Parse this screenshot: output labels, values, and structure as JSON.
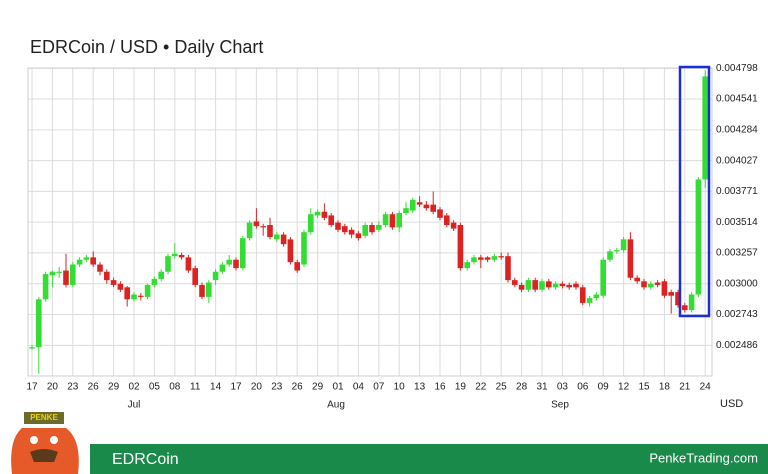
{
  "chart_data": {
    "type": "candlestick",
    "title": "EDRCoin / USD • Daily Chart",
    "currency": "USD",
    "months": [
      "Jul",
      "Aug",
      "Sep"
    ],
    "up_color": "#33dd33",
    "down_color": "#dd2222",
    "grid": true,
    "ylim": [
      0.00223,
      0.0048
    ],
    "yticks": [
      0.002486,
      {
        "value": 0.002743,
        "label": "0.002743"
      },
      {
        "value": 0.003,
        "label": "0.003000"
      },
      0.003257,
      0.003514,
      0.003771,
      0.004027,
      0.004284,
      0.004541,
      0.004798
    ],
    "categories": [
      "17",
      null,
      null,
      "20",
      null,
      null,
      "23",
      null,
      null,
      "26",
      null,
      null,
      "29",
      null,
      null,
      "02",
      null,
      null,
      "05",
      null,
      null,
      "08",
      null,
      null,
      "11",
      null,
      null,
      "14",
      null,
      null,
      "17",
      null,
      null,
      "20",
      null,
      null,
      "23",
      null,
      null,
      "26",
      null,
      null,
      "29",
      null,
      null,
      "01",
      null,
      null,
      "04",
      null,
      null,
      "07",
      null,
      null,
      "10",
      null,
      null,
      "13",
      null,
      null,
      "16",
      null,
      null,
      "19",
      null,
      null,
      "22",
      null,
      null,
      "25",
      null,
      null,
      "28",
      null,
      null,
      "31",
      null,
      null,
      "03",
      null,
      null,
      "06",
      null,
      null,
      "09",
      null,
      null,
      "12",
      null,
      null,
      "15",
      null,
      null,
      "18",
      null,
      null,
      "21",
      null,
      null,
      "24"
    ],
    "ohlc": [
      [
        0.00246,
        0.00249,
        0.00245,
        0.00247
      ],
      [
        0.00247,
        0.00289,
        0.00225,
        0.00287
      ],
      [
        0.00287,
        0.0031,
        0.00285,
        0.00308
      ],
      [
        0.00307,
        0.00311,
        0.00297,
        0.0031
      ],
      [
        0.00309,
        0.00314,
        0.00305,
        0.0031
      ],
      [
        0.00311,
        0.00325,
        0.00297,
        0.00299
      ],
      [
        0.00299,
        0.00318,
        0.00297,
        0.00316
      ],
      [
        0.00316,
        0.00322,
        0.00314,
        0.0032
      ],
      [
        0.0032,
        0.00324,
        0.00318,
        0.00322
      ],
      [
        0.00322,
        0.00327,
        0.00314,
        0.00316
      ],
      [
        0.00316,
        0.00318,
        0.00307,
        0.0031
      ],
      [
        0.0031,
        0.00312,
        0.003,
        0.00303
      ],
      [
        0.00303,
        0.00305,
        0.00297,
        0.00299
      ],
      [
        0.003,
        0.00302,
        0.00293,
        0.00295
      ],
      [
        0.00297,
        0.00298,
        0.00281,
        0.00287
      ],
      [
        0.00287,
        0.00293,
        0.00285,
        0.00291
      ],
      [
        0.0029,
        0.00292,
        0.00286,
        0.00289
      ],
      [
        0.00289,
        0.003,
        0.00287,
        0.00299
      ],
      [
        0.00299,
        0.00306,
        0.00297,
        0.00304
      ],
      [
        0.00304,
        0.00312,
        0.00302,
        0.0031
      ],
      [
        0.0031,
        0.00325,
        0.00308,
        0.00323
      ],
      [
        0.00323,
        0.00334,
        0.00321,
        0.00325
      ],
      [
        0.00324,
        0.00326,
        0.0032,
        0.00322
      ],
      [
        0.00322,
        0.00324,
        0.00309,
        0.00311
      ],
      [
        0.00313,
        0.00315,
        0.00297,
        0.00299
      ],
      [
        0.00299,
        0.00301,
        0.00287,
        0.00289
      ],
      [
        0.00289,
        0.00303,
        0.00284,
        0.00301
      ],
      [
        0.00303,
        0.00312,
        0.00299,
        0.0031
      ],
      [
        0.0031,
        0.00318,
        0.00308,
        0.00316
      ],
      [
        0.00316,
        0.00324,
        0.00314,
        0.0032
      ],
      [
        0.0032,
        0.00322,
        0.00311,
        0.00313
      ],
      [
        0.00313,
        0.0034,
        0.00311,
        0.00338
      ],
      [
        0.00338,
        0.00353,
        0.00336,
        0.00351
      ],
      [
        0.00352,
        0.00363,
        0.00346,
        0.00348
      ],
      [
        0.00348,
        0.0035,
        0.0034,
        0.00347
      ],
      [
        0.00349,
        0.00355,
        0.00337,
        0.00339
      ],
      [
        0.00337,
        0.00343,
        0.00335,
        0.00341
      ],
      [
        0.00341,
        0.00343,
        0.00331,
        0.00333
      ],
      [
        0.00337,
        0.00339,
        0.00316,
        0.00318
      ],
      [
        0.00318,
        0.0032,
        0.00309,
        0.00311
      ],
      [
        0.00316,
        0.00345,
        0.00314,
        0.00343
      ],
      [
        0.00343,
        0.00363,
        0.00341,
        0.00358
      ],
      [
        0.00357,
        0.00362,
        0.00355,
        0.0036
      ],
      [
        0.0036,
        0.00367,
        0.00353,
        0.00355
      ],
      [
        0.00357,
        0.00359,
        0.00347,
        0.00349
      ],
      [
        0.00351,
        0.00353,
        0.00343,
        0.00345
      ],
      [
        0.00348,
        0.0035,
        0.00341,
        0.00343
      ],
      [
        0.00345,
        0.00347,
        0.00338,
        0.00341
      ],
      [
        0.00342,
        0.00344,
        0.00336,
        0.00338
      ],
      [
        0.0034,
        0.00351,
        0.00338,
        0.00349
      ],
      [
        0.00349,
        0.00351,
        0.00341,
        0.00343
      ],
      [
        0.00345,
        0.00352,
        0.00343,
        0.00349
      ],
      [
        0.00349,
        0.0036,
        0.00347,
        0.00358
      ],
      [
        0.00358,
        0.0036,
        0.00345,
        0.00347
      ],
      [
        0.00347,
        0.00361,
        0.00343,
        0.00359
      ],
      [
        0.00359,
        0.00368,
        0.00357,
        0.00363
      ],
      [
        0.00361,
        0.00372,
        0.00359,
        0.0037
      ],
      [
        0.00368,
        0.00373,
        0.00364,
        0.00366
      ],
      [
        0.00366,
        0.00369,
        0.00361,
        0.00363
      ],
      [
        0.00366,
        0.00377,
        0.00358,
        0.0036
      ],
      [
        0.00362,
        0.00364,
        0.00353,
        0.00355
      ],
      [
        0.00357,
        0.00359,
        0.00347,
        0.00349
      ],
      [
        0.00351,
        0.00353,
        0.00344,
        0.00346
      ],
      [
        0.00349,
        0.00351,
        0.00311,
        0.00313
      ],
      [
        0.00313,
        0.0032,
        0.00311,
        0.00318
      ],
      [
        0.00318,
        0.00324,
        0.00316,
        0.00322
      ],
      [
        0.00322,
        0.00324,
        0.00313,
        0.0032
      ],
      [
        0.00322,
        0.00323,
        0.00318,
        0.0032
      ],
      [
        0.0032,
        0.00325,
        0.00318,
        0.00323
      ],
      [
        0.00323,
        0.00326,
        0.0032,
        0.00322
      ],
      [
        0.00323,
        0.00326,
        0.00301,
        0.00303
      ],
      [
        0.00303,
        0.00305,
        0.00297,
        0.00299
      ],
      [
        0.00299,
        0.00301,
        0.00293,
        0.00295
      ],
      [
        0.00295,
        0.00305,
        0.00293,
        0.00303
      ],
      [
        0.00303,
        0.00305,
        0.00293,
        0.00295
      ],
      [
        0.00295,
        0.00304,
        0.00293,
        0.00302
      ],
      [
        0.00302,
        0.00304,
        0.00295,
        0.00297
      ],
      [
        0.00297,
        0.00302,
        0.00295,
        0.003
      ],
      [
        0.003,
        0.00302,
        0.00296,
        0.00298
      ],
      [
        0.00299,
        0.00301,
        0.00295,
        0.00297
      ],
      [
        0.003,
        0.00302,
        0.00295,
        0.00297
      ],
      [
        0.00297,
        0.00299,
        0.00282,
        0.00284
      ],
      [
        0.00284,
        0.0029,
        0.00281,
        0.00288
      ],
      [
        0.00288,
        0.00293,
        0.00286,
        0.00291
      ],
      [
        0.0029,
        0.00322,
        0.00288,
        0.0032
      ],
      [
        0.0032,
        0.00329,
        0.00318,
        0.00327
      ],
      [
        0.00327,
        0.0033,
        0.00325,
        0.00328
      ],
      [
        0.00328,
        0.00339,
        0.00326,
        0.00337
      ],
      [
        0.00337,
        0.00343,
        0.00303,
        0.00305
      ],
      [
        0.00305,
        0.00307,
        0.003,
        0.00302
      ],
      [
        0.00302,
        0.00304,
        0.00295,
        0.00297
      ],
      [
        0.00297,
        0.00302,
        0.00295,
        0.003
      ],
      [
        0.00301,
        0.00303,
        0.00297,
        0.00299
      ],
      [
        0.00302,
        0.00304,
        0.00288,
        0.0029
      ],
      [
        0.00293,
        0.00295,
        0.00275,
        0.0029
      ],
      [
        0.00293,
        0.00295,
        0.0028,
        0.00282
      ],
      [
        0.00282,
        0.00284,
        0.00276,
        0.00278
      ],
      [
        0.00278,
        0.00293,
        0.00276,
        0.00291
      ],
      [
        0.00291,
        0.00389,
        0.00289,
        0.00387
      ],
      [
        0.00387,
        0.00478,
        0.0038,
        0.00473
      ]
    ]
  },
  "footer": {
    "logo": "PENKE",
    "left": "EDRCoin",
    "right": "PenkeTrading.com"
  }
}
